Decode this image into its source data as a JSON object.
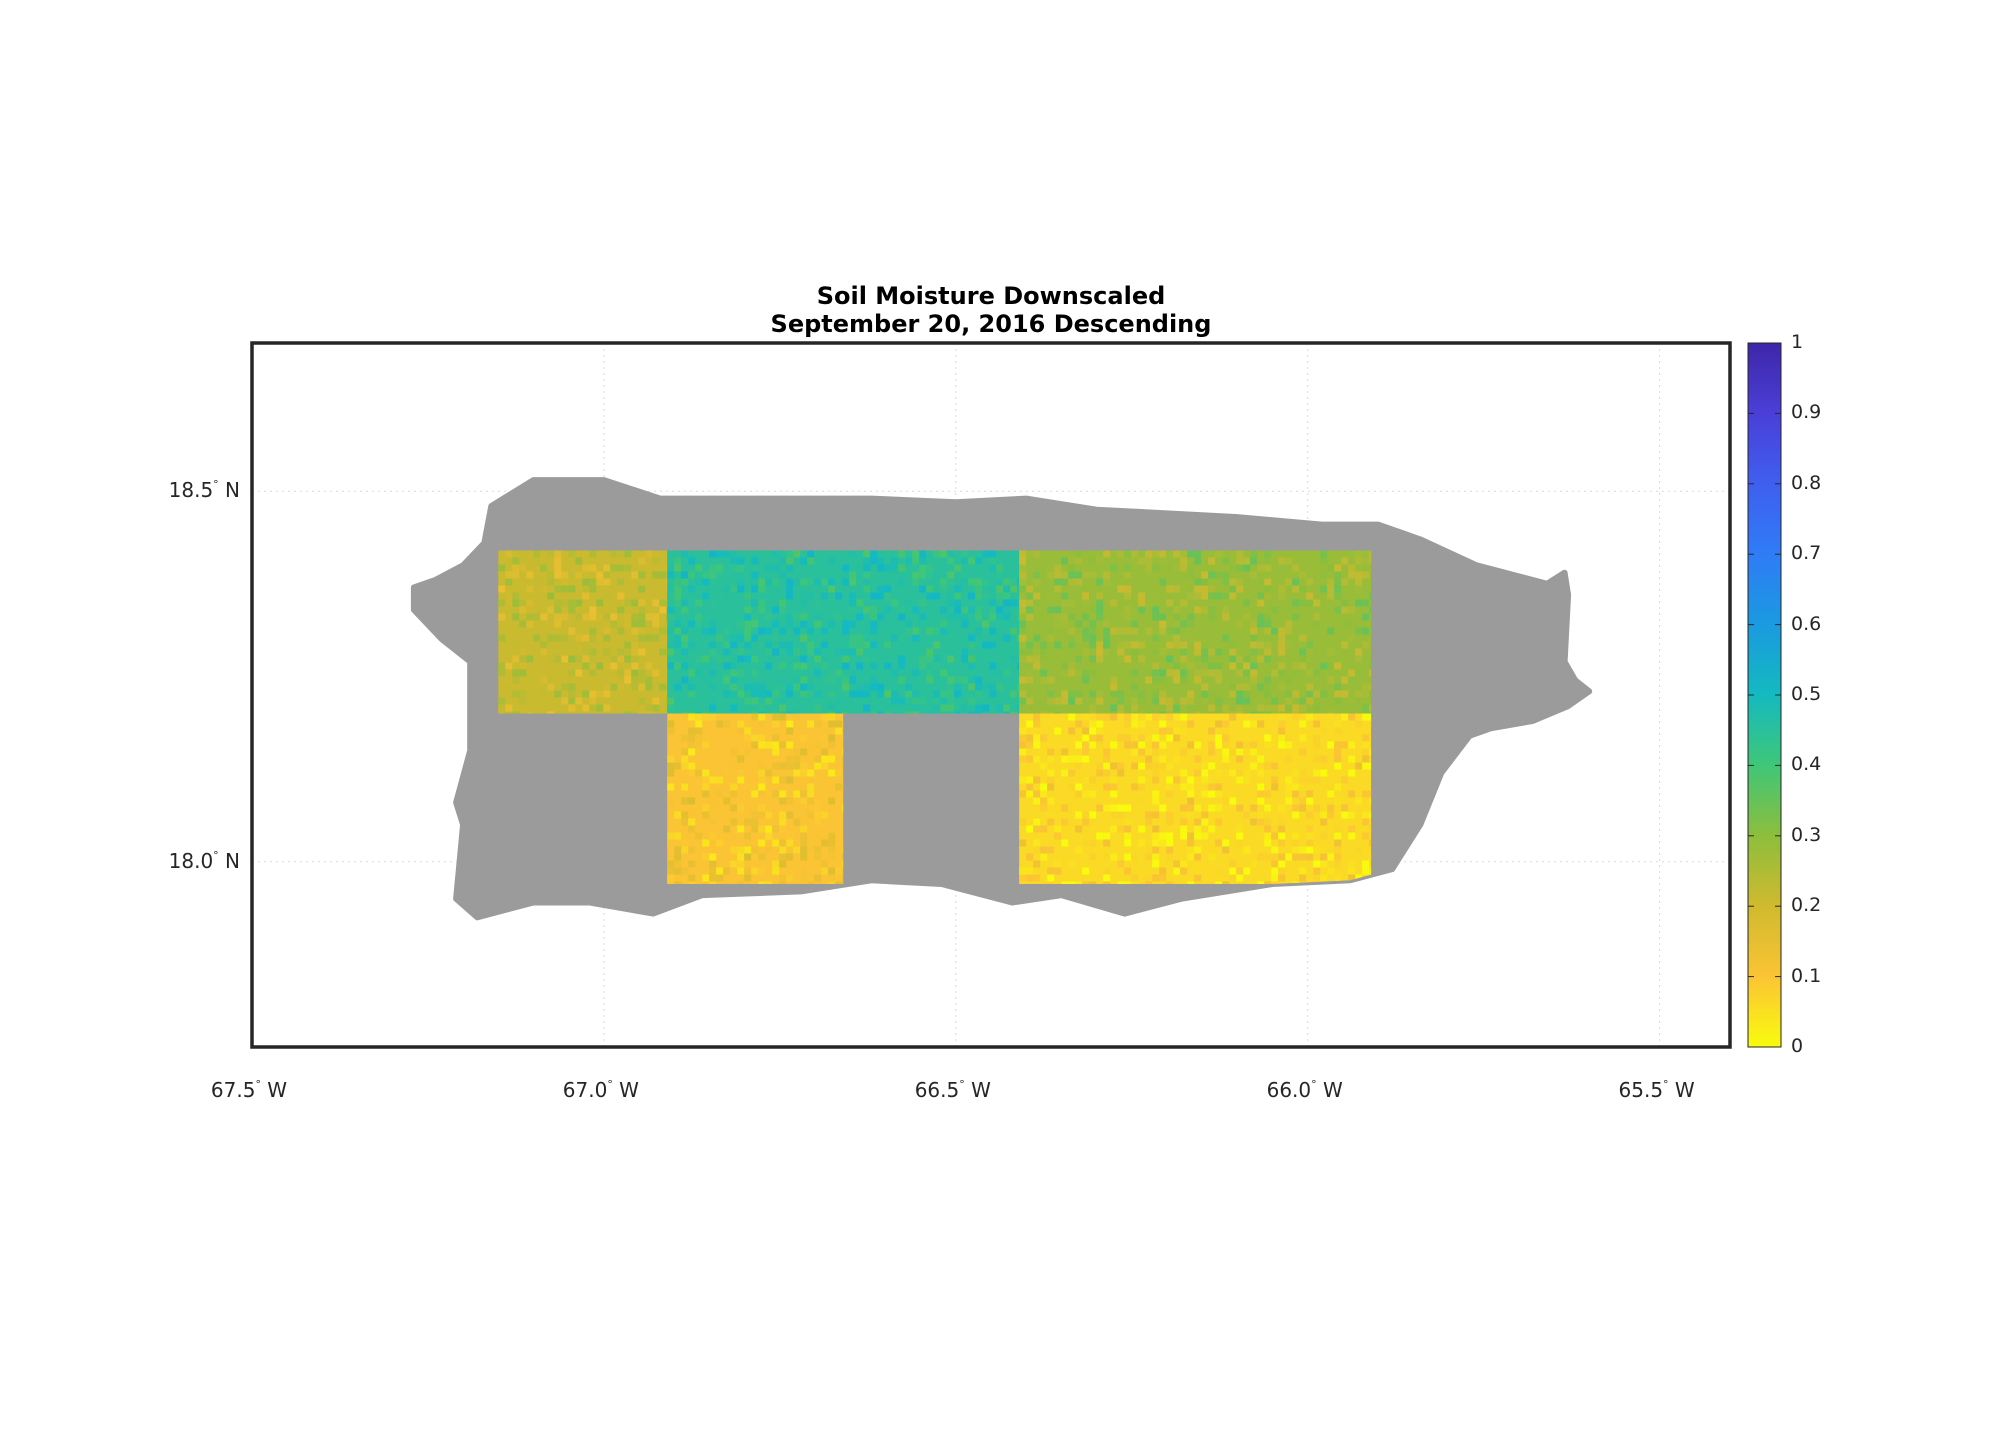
{
  "title": {
    "line1": "Soil Moisture Downscaled",
    "line2": "September 20, 2016 Descending"
  },
  "axes": {
    "xlim_lon": [
      -67.5,
      -65.4
    ],
    "ylim_lat": [
      17.75,
      18.7
    ],
    "x_ticks": [
      {
        "value": -67.5,
        "num": "67.5",
        "hem": " W"
      },
      {
        "value": -67.0,
        "num": "67.0",
        "hem": " W"
      },
      {
        "value": -66.5,
        "num": "66.5",
        "hem": " W"
      },
      {
        "value": -66.0,
        "num": "66.0",
        "hem": " W"
      },
      {
        "value": -65.5,
        "num": "65.5",
        "hem": " W"
      }
    ],
    "y_ticks": [
      {
        "value": 18.5,
        "num": "18.5",
        "hem": " N"
      },
      {
        "value": 18.0,
        "num": "18.0",
        "hem": " N"
      }
    ],
    "degree_symbol": "°",
    "grid": "dotted"
  },
  "colorbar": {
    "range": [
      0,
      1
    ],
    "ticks": [
      "0",
      "0.1",
      "0.2",
      "0.3",
      "0.4",
      "0.5",
      "0.6",
      "0.7",
      "0.8",
      "0.9",
      "1"
    ],
    "colormap": [
      "#f9fb0e",
      "#fbc434",
      "#d0ba2e",
      "#8dbe3c",
      "#3fc678",
      "#14bac0",
      "#1a9ae0",
      "#2f7cf6",
      "#3f5ff0",
      "#4a3fd8",
      "#3e26a8"
    ],
    "nodata_color": "#9b9b9b"
  },
  "map_data": {
    "region": "Puerto Rico",
    "nodata_color": "#9b9b9b",
    "tiles": [
      {
        "lon": [
          -67.15,
          -66.91
        ],
        "lat": [
          18.2,
          18.42
        ],
        "mean": 0.21
      },
      {
        "lon": [
          -66.91,
          -66.41
        ],
        "lat": [
          18.2,
          18.42
        ],
        "mean": 0.45
      },
      {
        "lon": [
          -66.41,
          -65.91
        ],
        "lat": [
          18.2,
          18.42
        ],
        "mean": 0.28
      },
      {
        "lon": [
          -66.91,
          -66.66
        ],
        "lat": [
          17.97,
          18.2
        ],
        "mean": 0.1
      },
      {
        "lon": [
          -66.41,
          -65.91
        ],
        "lat": [
          17.97,
          18.2
        ],
        "mean": 0.06
      }
    ]
  }
}
